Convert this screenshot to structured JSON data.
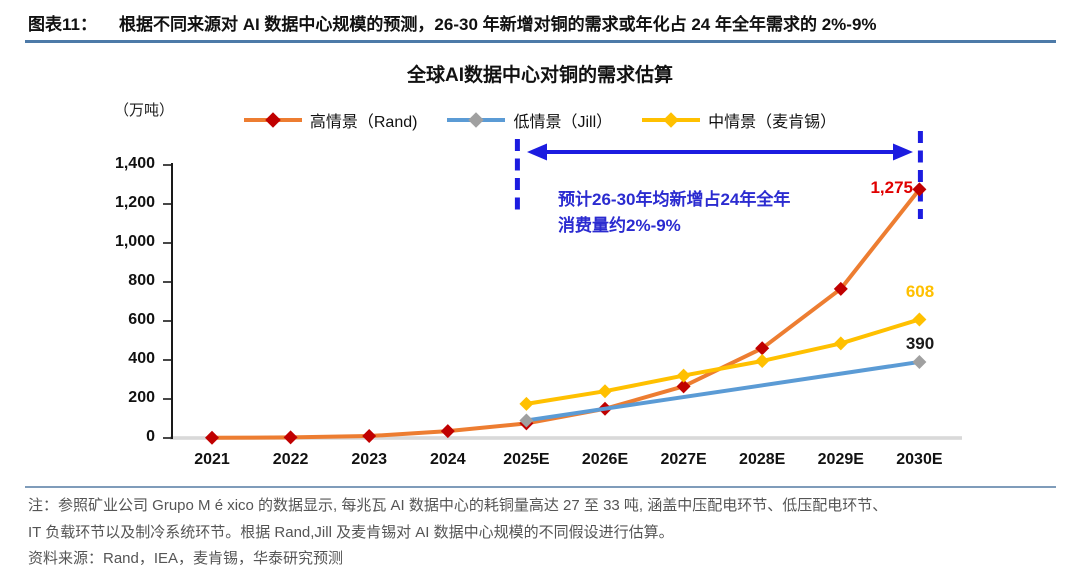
{
  "header": {
    "tag": "图表11：",
    "title": "根据不同来源对 AI 数据中心规模的预测，26-30 年新增对铜的需求或年化占 24 年全年需求的 2%-9%"
  },
  "chart": {
    "title": "全球AI数据中心对铜的需求估算",
    "unit_label": "（万吨）",
    "legend": [
      {
        "label": "高情景（Rand)"
      },
      {
        "label": "低情景（Jill）"
      },
      {
        "label": "中情景（麦肯锡）"
      }
    ],
    "annotation": {
      "line1": "预计26-30年均新增占24年全年",
      "line2_prefix": "消费量约",
      "line2_bold": "2%-9%"
    },
    "point_labels": {
      "rand_2030": "1,275",
      "mckinsey_2030": "608",
      "jill_2030": "390"
    }
  },
  "chart_data": {
    "type": "line",
    "title": "全球AI数据中心对铜的需求估算",
    "ylabel": "万吨",
    "categories": [
      "2021",
      "2022",
      "2023",
      "2024",
      "2025E",
      "2026E",
      "2027E",
      "2028E",
      "2029E",
      "2030E"
    ],
    "series": [
      {
        "name": "高情景（Rand)",
        "line_color": "#ED7D31",
        "marker_color": "#C00000",
        "values": [
          1,
          3,
          10,
          35,
          75,
          150,
          265,
          460,
          765,
          1275
        ]
      },
      {
        "name": "低情景（Jill）",
        "line_color": "#5B9BD5",
        "marker_color": "#A0A0A0",
        "values": [
          null,
          null,
          null,
          null,
          90,
          null,
          null,
          null,
          null,
          390
        ]
      },
      {
        "name": "中情景（麦肯锡）",
        "line_color": "#FFC000",
        "marker_color": "#FFC000",
        "values": [
          null,
          null,
          null,
          null,
          175,
          240,
          320,
          395,
          485,
          608
        ]
      }
    ],
    "ylim": [
      0,
      1400
    ],
    "ytick_step": 200,
    "grid": false,
    "legend_position": "top",
    "annotation_span": {
      "from_category": "2025E",
      "to_category": "2030E"
    },
    "colors": {
      "annotation_blue": "#2b2bd0",
      "dash_arrow_blue": "#1c1ce0",
      "label_red": "#e00000",
      "label_yellow": "#FFC000",
      "baseline_gray": "#D9D9D9",
      "axis_black": "#1a1a1a"
    }
  },
  "footer": {
    "note_line1": "注：参照矿业公司 Grupo M é xico 的数据显示, 每兆瓦 AI 数据中心的耗铜量高达 27 至 33 吨, 涵盖中压配电环节、低压配电环节、",
    "note_line2": "IT 负载环节以及制冷系统环节。根据 Rand,Jill 及麦肯锡对 AI 数据中心规模的不同假设进行估算。",
    "source": "资料来源：Rand，IEA，麦肯锡，华泰研究预测"
  }
}
